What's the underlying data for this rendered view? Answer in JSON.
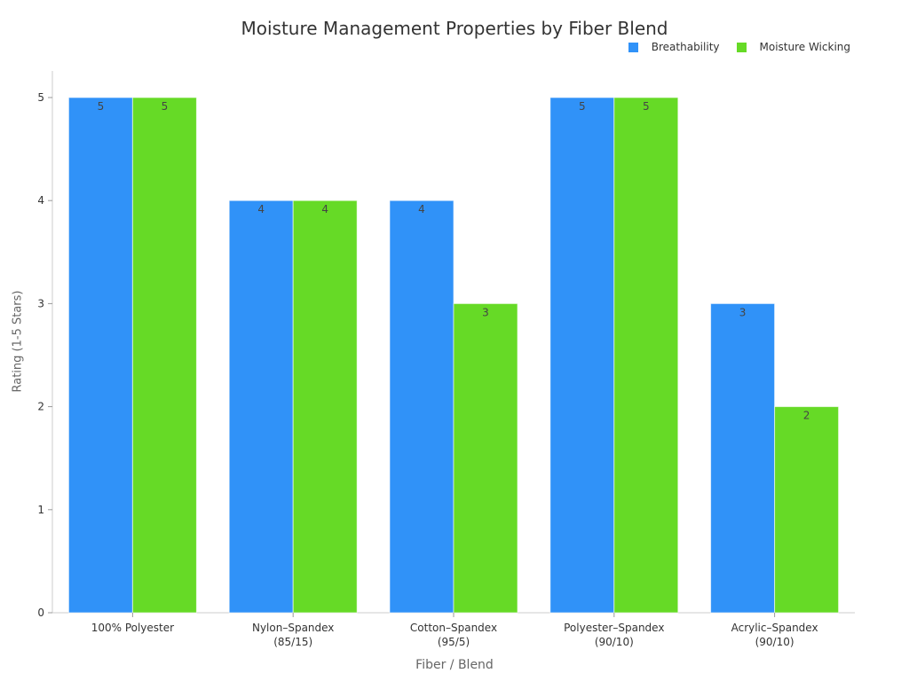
{
  "title": "Moisture Management Properties by Fiber Blend",
  "legend": [
    {
      "label": "Breathability",
      "color": "#3092f8"
    },
    {
      "label": "Moisture Wicking",
      "color": "#66da26"
    }
  ],
  "axes": {
    "ylabel": "Rating (1-5 Stars)",
    "xlabel": "Fiber / Blend",
    "yticks": [
      "0",
      "1",
      "2",
      "3",
      "4",
      "5"
    ]
  },
  "chart_data": {
    "type": "bar",
    "title": "Moisture Management Properties by Fiber Blend",
    "xlabel": "Fiber / Blend",
    "ylabel": "Rating (1-5 Stars)",
    "ylim": [
      0,
      5
    ],
    "grid": false,
    "legend_position": "top-right",
    "categories": [
      [
        "100% Polyester"
      ],
      [
        "Nylon–Spandex",
        "(85/15)"
      ],
      [
        "Cotton–Spandex",
        "(95/5)"
      ],
      [
        "Polyester–Spandex",
        "(90/10)"
      ],
      [
        "Acrylic–Spandex",
        "(90/10)"
      ]
    ],
    "series": [
      {
        "name": "Breathability",
        "color": "#3092f8",
        "values": [
          5,
          4,
          4,
          5,
          3
        ]
      },
      {
        "name": "Moisture Wicking",
        "color": "#66da26",
        "values": [
          5,
          4,
          3,
          5,
          2
        ]
      }
    ]
  }
}
